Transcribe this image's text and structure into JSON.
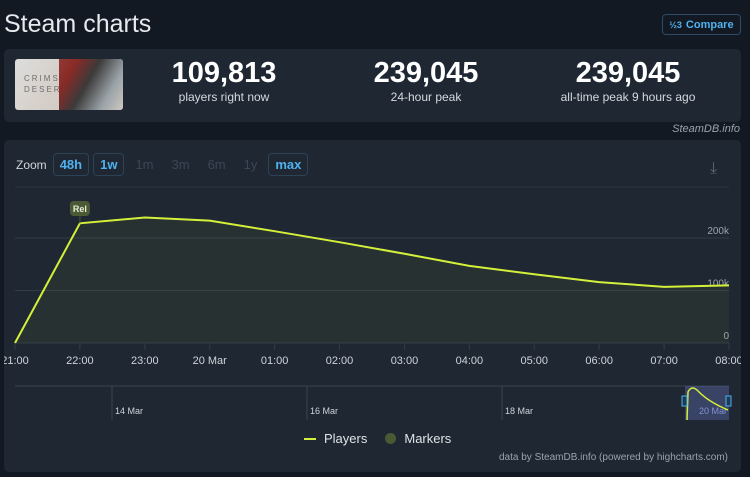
{
  "header": {
    "title": "Steam charts",
    "compare_label": "Compare",
    "compare_icon": "fraction-icon"
  },
  "stats": [
    {
      "value": "109,813",
      "label": "players right now"
    },
    {
      "value": "239,045",
      "label": "24-hour peak"
    },
    {
      "value": "239,045",
      "label": "all-time peak 9 hours ago"
    }
  ],
  "game_thumb_text": "CRIMSON DESERT",
  "credit": "SteamDB.info",
  "zoom": {
    "label": "Zoom",
    "buttons": [
      {
        "label": "48h",
        "active": true
      },
      {
        "label": "1w",
        "active": true
      },
      {
        "label": "1m",
        "active": false
      },
      {
        "label": "3m",
        "active": false
      },
      {
        "label": "6m",
        "active": false
      },
      {
        "label": "1y",
        "active": false
      },
      {
        "label": "max",
        "active": true
      }
    ]
  },
  "chart_data": {
    "type": "area",
    "categories": [
      "21:00",
      "22:00",
      "23:00",
      "20 Mar",
      "01:00",
      "02:00",
      "03:00",
      "04:00",
      "05:00",
      "06:00",
      "07:00",
      "08:00"
    ],
    "series": [
      {
        "name": "Players",
        "color": "#d4f03a",
        "values": [
          0,
          228000,
          239045,
          233000,
          213000,
          192000,
          170000,
          147000,
          131000,
          116000,
          107000,
          109813
        ]
      }
    ],
    "y_ticks": [
      "0",
      "100k",
      "200k"
    ],
    "ylim": [
      0,
      250000
    ],
    "marker": {
      "label": "Rel",
      "at": "22:00"
    },
    "navigator_labels": [
      "14 Mar",
      "16 Mar",
      "18 Mar",
      "20 Mar"
    ],
    "legend": [
      "Players",
      "Markers"
    ],
    "grid": true
  },
  "footer": "data by SteamDB.info (powered by highcharts.com)"
}
